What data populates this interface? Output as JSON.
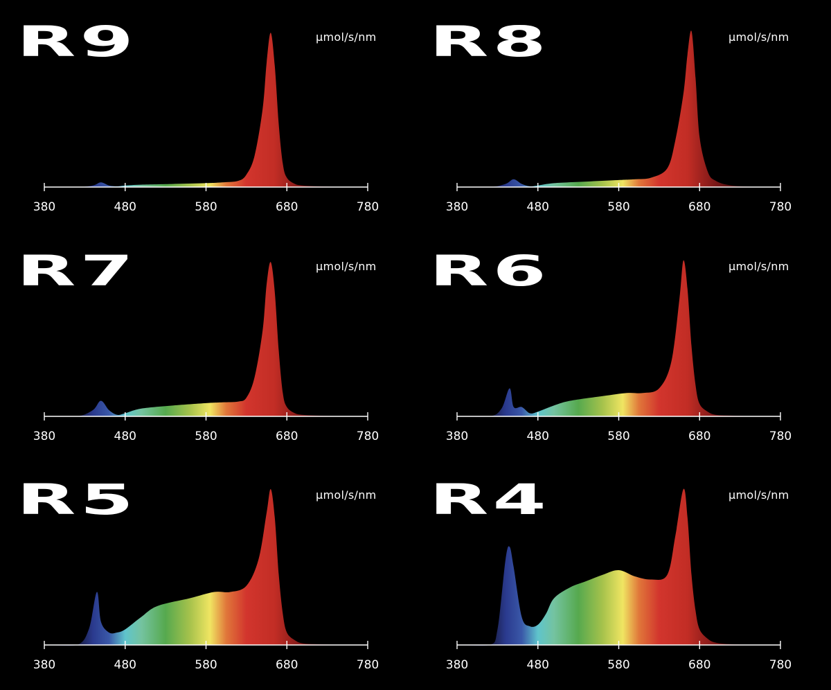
{
  "chart_data": [
    {
      "type": "area",
      "title": "R9",
      "ylabel": "μmol/s/nm",
      "x_ticks": [
        380,
        480,
        580,
        680,
        780
      ],
      "xlim": [
        380,
        780
      ],
      "ylim": [
        0,
        1
      ],
      "grid": false,
      "legend": "none",
      "series": [
        {
          "x": [
            380,
            420,
            440,
            450,
            460,
            470,
            480,
            500,
            540,
            580,
            600,
            620,
            630,
            640,
            650,
            655,
            660,
            665,
            670,
            675,
            680,
            690,
            700,
            720,
            760,
            780
          ],
          "y": [
            0.0,
            0.0,
            0.01,
            0.03,
            0.01,
            0.005,
            0.01,
            0.015,
            0.02,
            0.025,
            0.03,
            0.04,
            0.08,
            0.2,
            0.5,
            0.8,
            0.99,
            0.78,
            0.4,
            0.15,
            0.06,
            0.02,
            0.01,
            0.005,
            0.0,
            0.0
          ]
        }
      ]
    },
    {
      "type": "area",
      "title": "R8",
      "ylabel": "μmol/s/nm",
      "x_ticks": [
        380,
        480,
        580,
        680,
        780
      ],
      "xlim": [
        380,
        780
      ],
      "ylim": [
        0,
        1
      ],
      "grid": false,
      "legend": "none",
      "series": [
        {
          "x": [
            380,
            420,
            440,
            450,
            460,
            470,
            480,
            500,
            540,
            580,
            600,
            620,
            640,
            650,
            660,
            665,
            670,
            675,
            680,
            690,
            700,
            720,
            760,
            780
          ],
          "y": [
            0.0,
            0.0,
            0.02,
            0.05,
            0.02,
            0.005,
            0.01,
            0.025,
            0.035,
            0.045,
            0.05,
            0.06,
            0.12,
            0.3,
            0.6,
            0.85,
            1.0,
            0.7,
            0.32,
            0.1,
            0.04,
            0.01,
            0.0,
            0.0
          ]
        }
      ]
    },
    {
      "type": "area",
      "title": "R7",
      "ylabel": "μmol/s/nm",
      "x_ticks": [
        380,
        480,
        580,
        680,
        780
      ],
      "xlim": [
        380,
        780
      ],
      "ylim": [
        0,
        1
      ],
      "grid": false,
      "legend": "none",
      "series": [
        {
          "x": [
            380,
            420,
            440,
            450,
            460,
            470,
            480,
            500,
            540,
            580,
            600,
            620,
            630,
            640,
            650,
            655,
            660,
            665,
            670,
            675,
            680,
            690,
            700,
            720,
            760,
            780
          ],
          "y": [
            0.0,
            0.0,
            0.04,
            0.1,
            0.04,
            0.01,
            0.02,
            0.05,
            0.07,
            0.085,
            0.09,
            0.095,
            0.12,
            0.25,
            0.55,
            0.85,
            0.99,
            0.8,
            0.42,
            0.15,
            0.06,
            0.02,
            0.01,
            0.005,
            0.0,
            0.0
          ]
        }
      ]
    },
    {
      "type": "area",
      "title": "R6",
      "ylabel": "μmol/s/nm",
      "x_ticks": [
        380,
        480,
        580,
        680,
        780
      ],
      "xlim": [
        380,
        780
      ],
      "ylim": [
        0,
        1
      ],
      "grid": false,
      "legend": "none",
      "series": [
        {
          "x": [
            380,
            420,
            435,
            445,
            450,
            460,
            470,
            480,
            500,
            520,
            560,
            590,
            610,
            630,
            645,
            655,
            660,
            665,
            670,
            675,
            680,
            690,
            700,
            720,
            760,
            780
          ],
          "y": [
            0.0,
            0.0,
            0.05,
            0.18,
            0.06,
            0.06,
            0.02,
            0.03,
            0.07,
            0.1,
            0.13,
            0.15,
            0.15,
            0.18,
            0.35,
            0.75,
            1.0,
            0.82,
            0.45,
            0.2,
            0.08,
            0.03,
            0.01,
            0.005,
            0.0,
            0.0
          ]
        }
      ]
    },
    {
      "type": "area",
      "title": "R5",
      "ylabel": "μmol/s/nm",
      "x_ticks": [
        380,
        480,
        580,
        680,
        780
      ],
      "xlim": [
        380,
        780
      ],
      "ylim": [
        0,
        1
      ],
      "grid": false,
      "legend": "none",
      "series": [
        {
          "x": [
            380,
            420,
            435,
            445,
            450,
            460,
            470,
            480,
            500,
            520,
            560,
            590,
            610,
            630,
            645,
            655,
            660,
            665,
            670,
            675,
            680,
            690,
            700,
            720,
            760,
            780
          ],
          "y": [
            0.0,
            0.0,
            0.1,
            0.34,
            0.15,
            0.08,
            0.08,
            0.1,
            0.18,
            0.25,
            0.3,
            0.34,
            0.34,
            0.38,
            0.55,
            0.85,
            1.0,
            0.82,
            0.45,
            0.2,
            0.08,
            0.03,
            0.01,
            0.005,
            0.0,
            0.0
          ]
        }
      ]
    },
    {
      "type": "area",
      "title": "R4",
      "ylabel": "μmol/s/nm",
      "x_ticks": [
        380,
        480,
        580,
        680,
        780
      ],
      "xlim": [
        380,
        780
      ],
      "ylim": [
        0,
        1
      ],
      "grid": false,
      "legend": "none",
      "series": [
        {
          "x": [
            380,
            420,
            430,
            440,
            445,
            450,
            460,
            470,
            480,
            490,
            500,
            520,
            540,
            560,
            580,
            600,
            620,
            640,
            650,
            660,
            665,
            670,
            675,
            680,
            690,
            700,
            720,
            760,
            780
          ],
          "y": [
            0.0,
            0.0,
            0.1,
            0.55,
            0.63,
            0.5,
            0.18,
            0.12,
            0.13,
            0.2,
            0.3,
            0.37,
            0.41,
            0.45,
            0.48,
            0.44,
            0.42,
            0.45,
            0.7,
            1.0,
            0.82,
            0.45,
            0.22,
            0.1,
            0.04,
            0.015,
            0.005,
            0.0,
            0.0
          ]
        }
      ]
    }
  ]
}
